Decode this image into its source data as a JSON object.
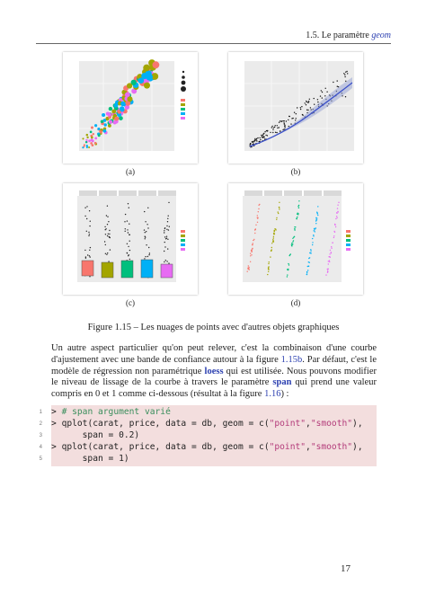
{
  "header": {
    "section": "1.5.",
    "title_prefix": "Le paramètre",
    "title_keyword": "geom"
  },
  "figures": {
    "a": {
      "label": "(a)"
    },
    "b": {
      "label": "(b)"
    },
    "c": {
      "label": "(c)"
    },
    "d": {
      "label": "(d)"
    }
  },
  "caption": "Figure 1.15 – Les nuages de points avec d'autres objets graphiques",
  "paragraph": {
    "t1": "Un autre aspect particulier qu'on peut relever, c'est la combinaison d'une courbe d'ajustement avec une bande de confiance autour à la figure ",
    "ref1": "1.15b",
    "t2": ". Par défaut, c'est le modèle de régression non paramétrique ",
    "kw1": "loess",
    "t3": " qui est utilisée. Nous pouvons modifier le niveau de lissage de la courbe à travers le paramètre ",
    "kw2": "span",
    "t4": " qui prend une valeur compris en 0 et 1 comme ci-dessous (résultat à la figure ",
    "ref2": "1.16",
    "t5": ") :"
  },
  "code": [
    {
      "n": "1",
      "prompt": "> ",
      "comment": "# span argument varié"
    },
    {
      "n": "2",
      "prompt": "> ",
      "pre": "qplot(carat, price, data = db, geom = c(",
      "s1": "\"point\"",
      "mid": ",",
      "s2": "\"smooth\"",
      "post": "),",
      "indent": ""
    },
    {
      "n": "3",
      "text": "      span = 0.2)"
    },
    {
      "n": "4",
      "prompt": "> ",
      "pre": "qplot(carat, price, data = db, geom = c(",
      "s1": "\"point\"",
      "mid": ",",
      "s2": "\"smooth\"",
      "post": "),",
      "indent": ""
    },
    {
      "n": "5",
      "text": "      span = 1)"
    }
  ],
  "page_number": "17",
  "colors": {
    "link": "#2b3fb0",
    "code_bg": "#f3dede",
    "comment": "#3a8e5c",
    "string": "#b33b7a",
    "panel_bg": "#ebebeb"
  }
}
